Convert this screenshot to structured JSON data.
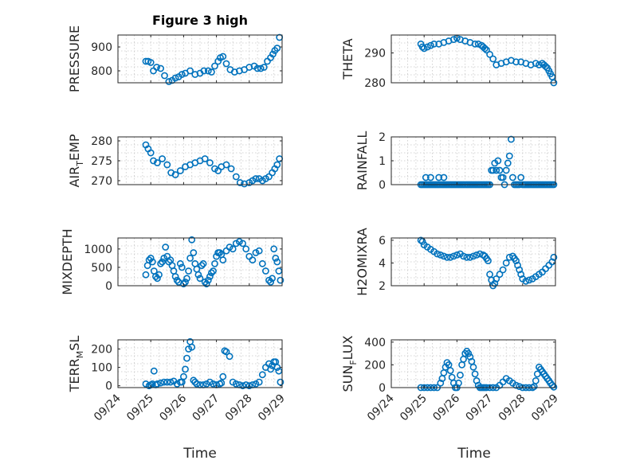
{
  "title": "Figure 3 high",
  "marker_color": "#0072BD",
  "chart_data": [
    {
      "type": "scatter",
      "ylabel": "PRESSURE",
      "title": "Figure 3 high",
      "ylim": [
        750,
        950
      ],
      "yticks": [
        800,
        900
      ],
      "xticks": [
        "09/24",
        "09/25",
        "09/26",
        "09/27",
        "09/28",
        "09/29"
      ],
      "xlim": [
        0,
        5
      ],
      "grid": true,
      "x": [
        0.85,
        0.92,
        1.0,
        1.08,
        1.18,
        1.3,
        1.42,
        1.55,
        1.65,
        1.75,
        1.85,
        1.95,
        2.05,
        2.2,
        2.35,
        2.5,
        2.62,
        2.75,
        2.85,
        2.95,
        3.05,
        3.12,
        3.2,
        3.3,
        3.42,
        3.55,
        3.7,
        3.85,
        4.0,
        4.15,
        4.25,
        4.35,
        4.45,
        4.55,
        4.65,
        4.72,
        4.78,
        4.85,
        4.92
      ],
      "y": [
        840,
        840,
        835,
        800,
        815,
        810,
        780,
        755,
        760,
        770,
        775,
        785,
        790,
        800,
        785,
        790,
        800,
        800,
        795,
        820,
        840,
        855,
        860,
        830,
        805,
        795,
        800,
        805,
        815,
        820,
        810,
        810,
        815,
        840,
        855,
        870,
        885,
        895,
        940
      ]
    },
    {
      "type": "scatter",
      "ylabel": "THETA",
      "ylim": [
        280,
        296
      ],
      "yticks": [
        280,
        290
      ],
      "xticks": [
        "09/24",
        "09/25",
        "09/26",
        "09/27",
        "09/28",
        "09/29"
      ],
      "xlim": [
        0,
        5
      ],
      "grid": true,
      "x": [
        0.9,
        0.95,
        1.0,
        1.1,
        1.2,
        1.3,
        1.45,
        1.6,
        1.75,
        1.9,
        2.0,
        2.1,
        2.25,
        2.4,
        2.55,
        2.65,
        2.75,
        2.8,
        2.85,
        2.9,
        3.0,
        3.1,
        3.2,
        3.35,
        3.5,
        3.65,
        3.8,
        3.95,
        4.1,
        4.25,
        4.4,
        4.5,
        4.6,
        4.65,
        4.7,
        4.75,
        4.8,
        4.85,
        4.9,
        4.95
      ],
      "y": [
        293,
        292,
        291.5,
        292,
        292.5,
        293,
        293,
        293.5,
        294,
        294.5,
        295,
        294.5,
        294,
        293.5,
        293,
        293,
        292.5,
        292,
        291.5,
        291,
        289.5,
        288,
        286,
        286.5,
        287,
        287.5,
        287,
        287,
        286.5,
        286,
        286.5,
        286,
        286.5,
        286,
        285.5,
        285,
        284,
        283,
        282,
        280
      ]
    },
    {
      "type": "scatter",
      "ylabel": "AIR_TEMP",
      "ylim": [
        269,
        281
      ],
      "yticks": [
        270,
        275,
        280
      ],
      "xticks": [
        "09/24",
        "09/25",
        "09/26",
        "09/27",
        "09/28",
        "09/29"
      ],
      "xlim": [
        0,
        5
      ],
      "grid": true,
      "x": [
        0.85,
        0.92,
        1.0,
        1.08,
        1.2,
        1.35,
        1.5,
        1.62,
        1.75,
        1.9,
        2.05,
        2.2,
        2.35,
        2.5,
        2.65,
        2.8,
        2.95,
        3.05,
        3.15,
        3.3,
        3.45,
        3.6,
        3.72,
        3.85,
        4.0,
        4.1,
        4.2,
        4.3,
        4.4,
        4.5,
        4.6,
        4.7,
        4.78,
        4.85,
        4.92
      ],
      "y": [
        279,
        278,
        277,
        275,
        274.5,
        275.5,
        274,
        272,
        271.5,
        272.5,
        273.5,
        274,
        274.5,
        275,
        275.5,
        274.5,
        273,
        272.5,
        273.5,
        274,
        273,
        271,
        269.5,
        269.2,
        269.5,
        270,
        270.5,
        270.5,
        270,
        270.5,
        271,
        272,
        273,
        274,
        275.5
      ]
    },
    {
      "type": "scatter",
      "ylabel": "RAINFALL",
      "ylim": [
        0,
        2
      ],
      "yticks": [
        0,
        1,
        2
      ],
      "xticks": [
        "09/24",
        "09/25",
        "09/26",
        "09/27",
        "09/28",
        "09/29"
      ],
      "xlim": [
        0,
        5
      ],
      "grid": true,
      "x": [
        0.9,
        0.95,
        1.0,
        1.05,
        1.1,
        1.15,
        1.2,
        1.25,
        1.3,
        1.35,
        1.4,
        1.45,
        1.5,
        1.55,
        1.6,
        1.65,
        1.7,
        1.75,
        1.8,
        1.85,
        1.9,
        1.95,
        2.0,
        2.05,
        2.1,
        2.15,
        2.2,
        2.25,
        2.3,
        2.35,
        2.4,
        2.45,
        2.5,
        2.55,
        2.6,
        2.65,
        2.7,
        2.75,
        2.8,
        2.85,
        2.9,
        2.95,
        3.0,
        1.05,
        1.2,
        1.45,
        1.6,
        3.05,
        3.1,
        3.15,
        3.2,
        3.25,
        3.3,
        3.35,
        3.4,
        3.45,
        3.5,
        3.55,
        3.6,
        3.65,
        3.7,
        3.75,
        3.8,
        3.85,
        3.9,
        3.95,
        4.0,
        4.05,
        4.1,
        4.15,
        4.2,
        4.25,
        4.3,
        4.35,
        4.4,
        4.45,
        4.5,
        4.55,
        4.6,
        4.65,
        4.7,
        4.75,
        4.8,
        4.85,
        4.9,
        4.95
      ],
      "y": [
        0,
        0,
        0,
        0,
        0,
        0,
        0,
        0,
        0,
        0,
        0,
        0,
        0,
        0,
        0,
        0,
        0,
        0,
        0,
        0,
        0,
        0,
        0,
        0,
        0,
        0,
        0,
        0,
        0,
        0,
        0,
        0,
        0,
        0,
        0,
        0,
        0,
        0,
        0,
        0,
        0,
        0,
        0,
        0.3,
        0.3,
        0.3,
        0.3,
        0.6,
        0.6,
        0.9,
        0.6,
        1.0,
        0.6,
        0.3,
        0.3,
        0,
        0.6,
        0.9,
        1.2,
        1.9,
        0.3,
        0,
        0,
        0,
        0,
        0.3,
        0,
        0,
        0,
        0,
        0,
        0,
        0,
        0,
        0,
        0,
        0,
        0,
        0,
        0,
        0,
        0,
        0,
        0,
        0,
        0
      ]
    },
    {
      "type": "scatter",
      "ylabel": "MIXDEPTH",
      "ylim": [
        0,
        1300
      ],
      "yticks": [
        0,
        500,
        1000
      ],
      "xticks": [
        "09/24",
        "09/25",
        "09/26",
        "09/27",
        "09/28",
        "09/29"
      ],
      "xlim": [
        0,
        5
      ],
      "grid": true,
      "x": [
        0.85,
        0.9,
        0.95,
        1.0,
        1.05,
        1.1,
        1.15,
        1.2,
        1.25,
        1.3,
        1.35,
        1.4,
        1.45,
        1.5,
        1.55,
        1.6,
        1.65,
        1.7,
        1.75,
        1.8,
        1.85,
        1.9,
        1.95,
        2.0,
        2.05,
        2.1,
        2.15,
        2.2,
        2.25,
        2.3,
        2.35,
        2.4,
        2.45,
        2.5,
        2.55,
        2.6,
        2.65,
        2.7,
        2.75,
        2.8,
        2.85,
        2.9,
        2.95,
        3.0,
        3.05,
        3.1,
        3.15,
        3.2,
        3.3,
        3.4,
        3.5,
        3.6,
        3.7,
        3.8,
        3.9,
        4.0,
        4.1,
        4.2,
        4.3,
        4.4,
        4.5,
        4.6,
        4.65,
        4.7,
        4.75,
        4.8,
        4.85,
        4.9,
        4.95
      ],
      "y": [
        300,
        550,
        700,
        750,
        650,
        400,
        250,
        200,
        300,
        600,
        650,
        750,
        1050,
        800,
        650,
        700,
        550,
        400,
        250,
        150,
        100,
        600,
        500,
        50,
        100,
        200,
        400,
        750,
        1250,
        900,
        600,
        450,
        300,
        200,
        550,
        600,
        100,
        50,
        150,
        250,
        350,
        400,
        600,
        800,
        900,
        900,
        850,
        700,
        950,
        1050,
        1000,
        1150,
        1200,
        1150,
        1000,
        800,
        700,
        900,
        950,
        600,
        400,
        150,
        100,
        200,
        1000,
        750,
        650,
        400,
        150
      ]
    },
    {
      "type": "scatter",
      "ylabel": "H2OMIXRA",
      "ylim": [
        2,
        6.2
      ],
      "yticks": [
        2,
        4,
        6
      ],
      "xticks": [
        "09/24",
        "09/25",
        "09/26",
        "09/27",
        "09/28",
        "09/29"
      ],
      "xlim": [
        0,
        5
      ],
      "grid": true,
      "x": [
        0.9,
        0.95,
        1.0,
        1.1,
        1.2,
        1.3,
        1.4,
        1.5,
        1.6,
        1.7,
        1.8,
        1.9,
        2.0,
        2.1,
        2.2,
        2.3,
        2.4,
        2.5,
        2.6,
        2.7,
        2.8,
        2.85,
        2.9,
        2.95,
        3.0,
        3.05,
        3.1,
        3.15,
        3.2,
        3.3,
        3.4,
        3.5,
        3.6,
        3.7,
        3.75,
        3.8,
        3.85,
        3.9,
        3.95,
        4.0,
        4.1,
        4.2,
        4.3,
        4.4,
        4.5,
        4.6,
        4.7,
        4.8,
        4.9,
        4.95
      ],
      "y": [
        6.0,
        5.9,
        5.6,
        5.4,
        5.2,
        5.0,
        4.8,
        4.7,
        4.6,
        4.5,
        4.5,
        4.6,
        4.7,
        4.8,
        4.6,
        4.5,
        4.5,
        4.6,
        4.7,
        4.8,
        4.7,
        4.6,
        4.4,
        4.2,
        3.0,
        2.5,
        2.0,
        2.2,
        2.6,
        3.0,
        3.4,
        4.0,
        4.5,
        4.6,
        4.4,
        4.2,
        3.8,
        3.4,
        3.0,
        2.6,
        2.4,
        2.5,
        2.6,
        2.8,
        3.0,
        3.2,
        3.5,
        3.8,
        4.1,
        4.5
      ]
    },
    {
      "type": "scatter",
      "ylabel": "TERR_MSL",
      "ylim": [
        -10,
        250
      ],
      "yticks": [
        0,
        100,
        200
      ],
      "xticks": [
        "09/24",
        "09/25",
        "09/26",
        "09/27",
        "09/28",
        "09/29"
      ],
      "xlim": [
        0,
        5
      ],
      "grid": true,
      "x": [
        0.85,
        0.95,
        1.0,
        1.05,
        1.1,
        1.15,
        1.2,
        1.3,
        1.4,
        1.5,
        1.6,
        1.7,
        1.8,
        1.9,
        1.95,
        2.0,
        2.05,
        2.1,
        2.15,
        2.2,
        2.25,
        2.3,
        2.35,
        2.4,
        2.5,
        2.6,
        2.7,
        2.8,
        2.9,
        3.0,
        3.1,
        3.15,
        3.2,
        3.25,
        3.3,
        3.4,
        3.5,
        3.6,
        3.7,
        3.8,
        3.9,
        4.0,
        4.1,
        4.2,
        4.3,
        4.4,
        4.5,
        4.6,
        4.65,
        4.7,
        4.75,
        4.8,
        4.85,
        4.9,
        4.95
      ],
      "y": [
        10,
        0,
        5,
        10,
        80,
        5,
        10,
        15,
        20,
        20,
        20,
        25,
        10,
        20,
        20,
        50,
        90,
        150,
        200,
        240,
        210,
        30,
        20,
        10,
        5,
        5,
        10,
        20,
        10,
        5,
        10,
        15,
        50,
        190,
        185,
        160,
        20,
        10,
        5,
        0,
        5,
        0,
        5,
        10,
        20,
        60,
        100,
        120,
        90,
        110,
        130,
        130,
        100,
        80,
        20
      ]
    },
    {
      "type": "scatter",
      "ylabel": "SUN_FLUX",
      "ylim": [
        0,
        420
      ],
      "yticks": [
        0,
        200,
        400
      ],
      "xticks": [
        "09/24",
        "09/25",
        "09/26",
        "09/27",
        "09/28",
        "09/29"
      ],
      "xlim": [
        0,
        5
      ],
      "grid": true,
      "x": [
        0.9,
        1.0,
        1.1,
        1.2,
        1.3,
        1.4,
        1.5,
        1.55,
        1.6,
        1.65,
        1.7,
        1.75,
        1.8,
        1.85,
        1.9,
        1.95,
        2.0,
        2.05,
        2.1,
        2.15,
        2.2,
        2.25,
        2.3,
        2.35,
        2.4,
        2.45,
        2.5,
        2.55,
        2.6,
        2.65,
        2.7,
        2.75,
        2.8,
        2.85,
        2.9,
        3.0,
        3.1,
        3.2,
        3.3,
        3.4,
        3.5,
        3.6,
        3.7,
        3.8,
        3.9,
        4.0,
        4.1,
        4.2,
        4.3,
        4.35,
        4.4,
        4.45,
        4.5,
        4.55,
        4.6,
        4.65,
        4.7,
        4.75,
        4.8,
        4.85,
        4.9,
        4.95
      ],
      "y": [
        0,
        0,
        0,
        0,
        0,
        0,
        40,
        80,
        130,
        180,
        220,
        200,
        150,
        90,
        40,
        0,
        0,
        40,
        110,
        200,
        250,
        300,
        320,
        300,
        270,
        230,
        180,
        120,
        60,
        20,
        0,
        0,
        0,
        0,
        0,
        0,
        0,
        0,
        20,
        50,
        80,
        60,
        40,
        20,
        10,
        0,
        0,
        0,
        0,
        10,
        60,
        120,
        180,
        160,
        140,
        120,
        100,
        80,
        60,
        40,
        20,
        5
      ]
    }
  ],
  "xlabels": [
    "Time",
    "Time"
  ]
}
